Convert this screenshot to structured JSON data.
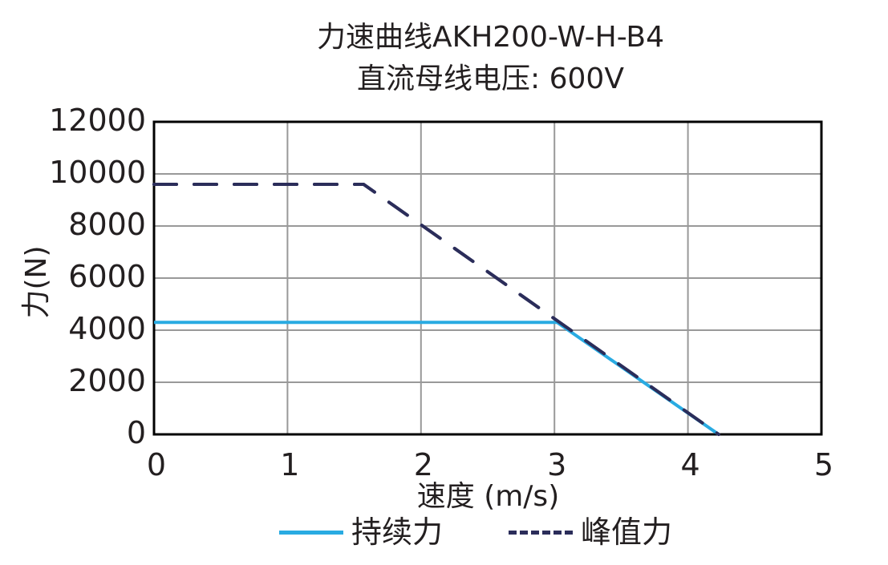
{
  "chart_data": {
    "type": "line",
    "title": "力速曲线AKH200-W-H-B4",
    "subtitle": "直流母线电压: 600V",
    "xlabel": "速度 (m/s)",
    "ylabel": "力(N)",
    "xlim": [
      0,
      5
    ],
    "ylim": [
      0,
      12000
    ],
    "xticks": [
      "0",
      "1",
      "2",
      "3",
      "4",
      "5"
    ],
    "yticks": [
      "0",
      "2000",
      "4000",
      "6000",
      "8000",
      "10000",
      "12000"
    ],
    "grid": true,
    "legend_position": "bottom",
    "series": [
      {
        "name": "持续力",
        "color": "#29abe2",
        "style": "solid",
        "x": [
          0,
          3.02,
          4.23
        ],
        "y": [
          4300,
          4300,
          0
        ]
      },
      {
        "name": "峰值力",
        "color": "#2b2d5a",
        "style": "dashed",
        "x": [
          0,
          1.57,
          4.23
        ],
        "y": [
          9600,
          9600,
          0
        ]
      }
    ]
  },
  "legend": {
    "continuous": "持续力",
    "peak": "峰值力",
    "continuous_dash": "——",
    "peak_dash": "-----"
  }
}
